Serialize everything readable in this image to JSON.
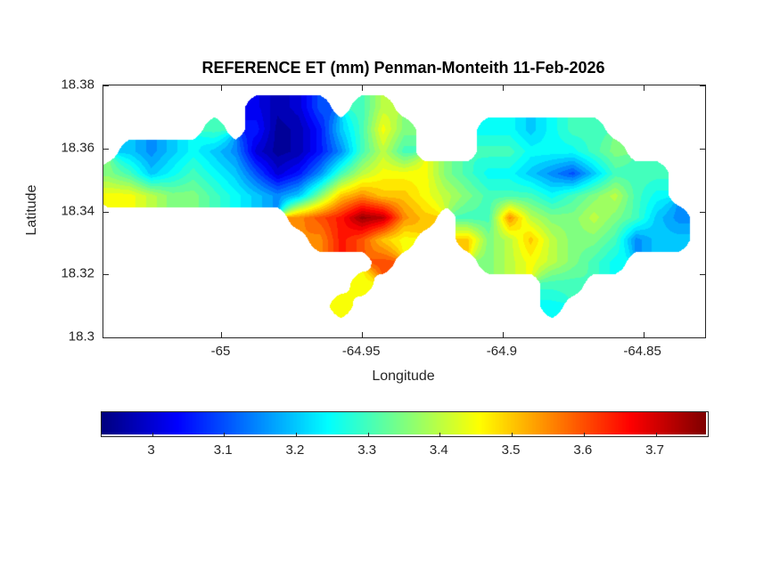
{
  "figure": {
    "background": "#ffffff",
    "axes_color": "#262626"
  },
  "chart_data": {
    "type": "heatmap",
    "title": "REFERENCE ET (mm) Penman-Monteith 11-Feb-2026",
    "xlabel": "Longitude",
    "ylabel": "Latitude",
    "xlim": [
      -65.042,
      -64.828
    ],
    "ylim": [
      18.3,
      18.38
    ],
    "xticks": [
      {
        "v": -65.0,
        "label": "-65"
      },
      {
        "v": -64.95,
        "label": "-64.95"
      },
      {
        "v": -64.9,
        "label": "-64.9"
      },
      {
        "v": -64.85,
        "label": "-64.85"
      }
    ],
    "yticks": [
      {
        "v": 18.3,
        "label": "18.3"
      },
      {
        "v": 18.32,
        "label": "18.32"
      },
      {
        "v": 18.34,
        "label": "18.34"
      },
      {
        "v": 18.36,
        "label": "18.36"
      },
      {
        "v": 18.38,
        "label": "18.38"
      }
    ],
    "colormap": "jet",
    "color_range": [
      2.93,
      3.77
    ],
    "contour_step": 0.025,
    "legend_position": "south",
    "grid_lines": false,
    "colorbar": {
      "orientation": "horizontal",
      "ticks": [
        {
          "v": 3.0,
          "label": "3"
        },
        {
          "v": 3.1,
          "label": "3.1"
        },
        {
          "v": 3.2,
          "label": "3.2"
        },
        {
          "v": 3.3,
          "label": "3.3"
        },
        {
          "v": 3.4,
          "label": "3.4"
        },
        {
          "v": 3.5,
          "label": "3.5"
        },
        {
          "v": 3.6,
          "label": "3.6"
        },
        {
          "v": 3.7,
          "label": "3.7"
        }
      ]
    },
    "grid": {
      "comment": "Reference ET (mm) sampled on lon/lat grid; null = ocean (masked). Rows north to south.",
      "lon_start": -65.04,
      "lon_step": 0.0075,
      "lat_start": 18.373,
      "lat_step": -0.007,
      "values": [
        [
          null,
          null,
          null,
          null,
          null,
          null,
          null,
          3.02,
          2.97,
          3.0,
          3.1,
          null,
          3.3,
          3.4,
          null,
          null,
          null,
          null,
          null,
          null,
          null,
          null,
          null,
          null,
          null,
          null,
          null,
          null
        ],
        [
          null,
          null,
          null,
          null,
          null,
          3.3,
          null,
          3.05,
          2.95,
          2.97,
          3.05,
          3.2,
          3.3,
          3.45,
          3.35,
          null,
          null,
          null,
          3.25,
          3.25,
          3.2,
          3.25,
          3.3,
          3.3,
          null,
          null,
          null,
          null
        ],
        [
          null,
          3.2,
          3.15,
          3.2,
          3.25,
          3.2,
          3.15,
          3.0,
          2.95,
          2.97,
          3.05,
          3.15,
          3.3,
          3.4,
          3.3,
          null,
          null,
          null,
          3.3,
          3.3,
          3.25,
          3.25,
          3.25,
          3.3,
          3.35,
          null,
          null,
          null
        ],
        [
          3.35,
          3.3,
          3.2,
          3.25,
          3.3,
          3.25,
          3.2,
          3.1,
          3.0,
          3.05,
          3.15,
          3.3,
          3.4,
          3.45,
          3.45,
          3.45,
          3.35,
          3.3,
          3.25,
          3.25,
          3.2,
          3.15,
          3.1,
          3.2,
          3.3,
          3.3,
          3.3,
          null
        ],
        [
          3.45,
          3.45,
          3.4,
          3.35,
          3.35,
          3.3,
          3.25,
          3.2,
          3.15,
          3.2,
          3.35,
          3.5,
          3.55,
          3.5,
          3.5,
          3.45,
          3.4,
          3.35,
          3.3,
          3.3,
          3.3,
          3.25,
          3.3,
          3.35,
          3.4,
          3.3,
          3.25,
          null
        ],
        [
          null,
          null,
          null,
          null,
          null,
          null,
          null,
          null,
          null,
          3.55,
          3.6,
          3.65,
          3.75,
          3.72,
          3.55,
          3.5,
          null,
          3.3,
          3.3,
          3.55,
          3.4,
          3.35,
          3.35,
          3.4,
          3.35,
          3.3,
          3.2,
          3.15
        ],
        [
          null,
          null,
          null,
          null,
          null,
          null,
          null,
          null,
          null,
          null,
          3.55,
          3.65,
          3.6,
          3.5,
          3.45,
          null,
          null,
          3.5,
          3.35,
          3.4,
          3.5,
          3.4,
          3.35,
          3.35,
          3.3,
          3.15,
          3.2,
          3.2
        ],
        [
          null,
          null,
          null,
          null,
          null,
          null,
          null,
          null,
          null,
          null,
          null,
          null,
          null,
          3.6,
          null,
          null,
          null,
          null,
          3.35,
          3.4,
          3.45,
          3.4,
          3.35,
          3.3,
          3.25,
          null,
          null,
          null
        ],
        [
          null,
          null,
          null,
          null,
          null,
          null,
          null,
          null,
          null,
          null,
          null,
          null,
          3.45,
          null,
          null,
          null,
          null,
          null,
          null,
          null,
          null,
          3.3,
          3.3,
          null,
          null,
          null,
          null,
          null
        ],
        [
          null,
          null,
          null,
          null,
          null,
          null,
          null,
          null,
          null,
          null,
          null,
          3.45,
          null,
          null,
          null,
          null,
          null,
          null,
          null,
          null,
          null,
          3.25,
          null,
          null,
          null,
          null,
          null,
          null
        ]
      ]
    }
  }
}
